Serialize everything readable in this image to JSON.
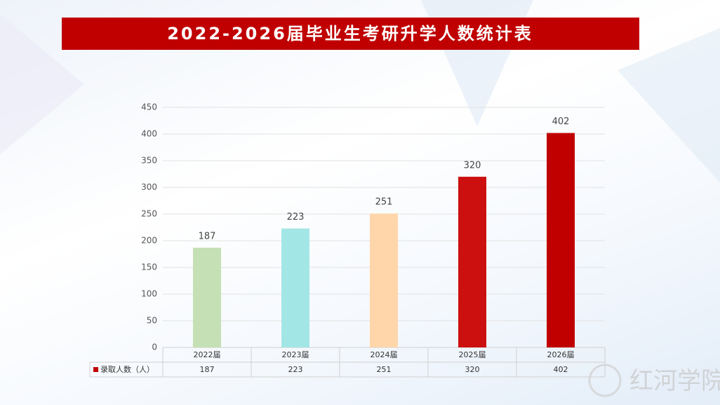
{
  "chart_data": {
    "type": "bar",
    "title": "2022-2026届毕业生考研升学人数统计表",
    "categories": [
      "2022届",
      "2023届",
      "2024届",
      "2025届",
      "2026届"
    ],
    "series": [
      {
        "name": "录取人数（人）",
        "color": "#c00000",
        "values": [
          187,
          223,
          251,
          320,
          402
        ]
      }
    ],
    "colors": [
      "#c5e0b4",
      "#a3e6e6",
      "#ffd6aa",
      "#cc1010",
      "#c00000"
    ],
    "ylim": [
      0,
      450
    ],
    "yticks": [
      0,
      50,
      100,
      150,
      200,
      250,
      300,
      350,
      400,
      450
    ],
    "grid": true,
    "watermark": "红河学院"
  }
}
